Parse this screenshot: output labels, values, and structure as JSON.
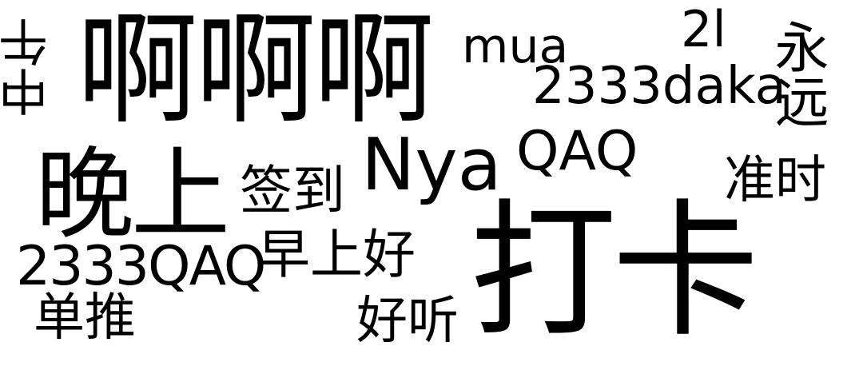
{
  "word_cloud": {
    "words": [
      {
        "text": "啊啊啊",
        "color": "#4dbd6b"
      },
      {
        "text": "打卡",
        "color": "#84d44b"
      },
      {
        "text": "晚上",
        "color": "#4b2a77"
      },
      {
        "text": "Nya",
        "color": "#2a8287"
      },
      {
        "text": "2333daka",
        "color": "#366d8c"
      },
      {
        "text": "2333QAQ",
        "color": "#28ab7f"
      },
      {
        "text": "早上好",
        "color": "#219a88"
      },
      {
        "text": "签到",
        "color": "#21988b"
      },
      {
        "text": "mua",
        "color": "#452b71"
      },
      {
        "text": "QAQ",
        "color": "#3c3f83"
      },
      {
        "text": "准时",
        "color": "#a3d934"
      },
      {
        "text": "单推",
        "color": "#366c8d"
      },
      {
        "text": "好听",
        "color": "#70cf57"
      },
      {
        "text": "2l",
        "color": "#e8e51a"
      },
      {
        "text": "永远",
        "color": "#462a70"
      },
      {
        "text": "中午",
        "color": "#4bbe66"
      }
    ]
  }
}
